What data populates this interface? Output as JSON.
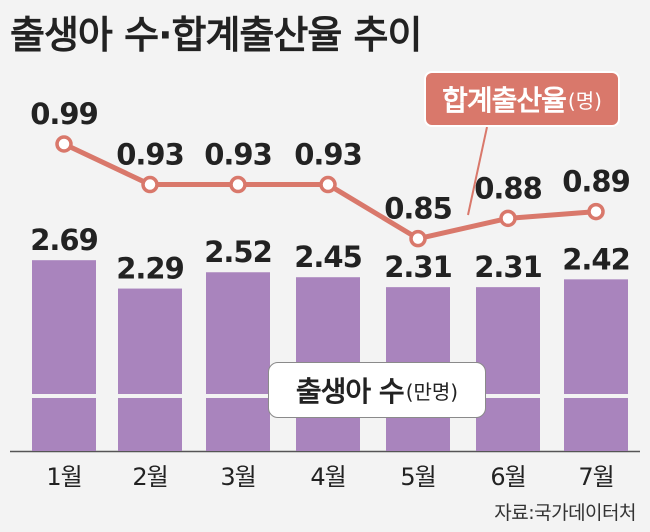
{
  "title": "출생아 수·합계출산율 추이",
  "source": "자료:국가데이터처",
  "colors": {
    "background": "#f3f3f3",
    "bar": "#a984bd",
    "line": "#d9786b"
  },
  "chart_data": {
    "type": "bar",
    "categories": [
      "1월",
      "2월",
      "3월",
      "4월",
      "5월",
      "6월",
      "7월"
    ],
    "series": [
      {
        "name": "출생아 수",
        "unit": "(만명)",
        "type": "bar",
        "values": [
          2.69,
          2.29,
          2.52,
          2.45,
          2.31,
          2.31,
          2.42
        ],
        "labels": [
          "2.69",
          "2.29",
          "2.52",
          "2.45",
          "2.31",
          "2.31",
          "2.42"
        ]
      },
      {
        "name": "합계출산율",
        "unit": "(명)",
        "type": "line",
        "values": [
          0.99,
          0.93,
          0.93,
          0.93,
          0.85,
          0.88,
          0.89
        ],
        "labels": [
          "0.99",
          "0.93",
          "0.93",
          "0.93",
          "0.85",
          "0.88",
          "0.89"
        ]
      }
    ],
    "legend": {
      "line": {
        "name": "합계출산율",
        "unit": "(명)"
      },
      "bar": {
        "name": "출생아 수",
        "unit": "(만명)"
      }
    },
    "grid": false
  }
}
